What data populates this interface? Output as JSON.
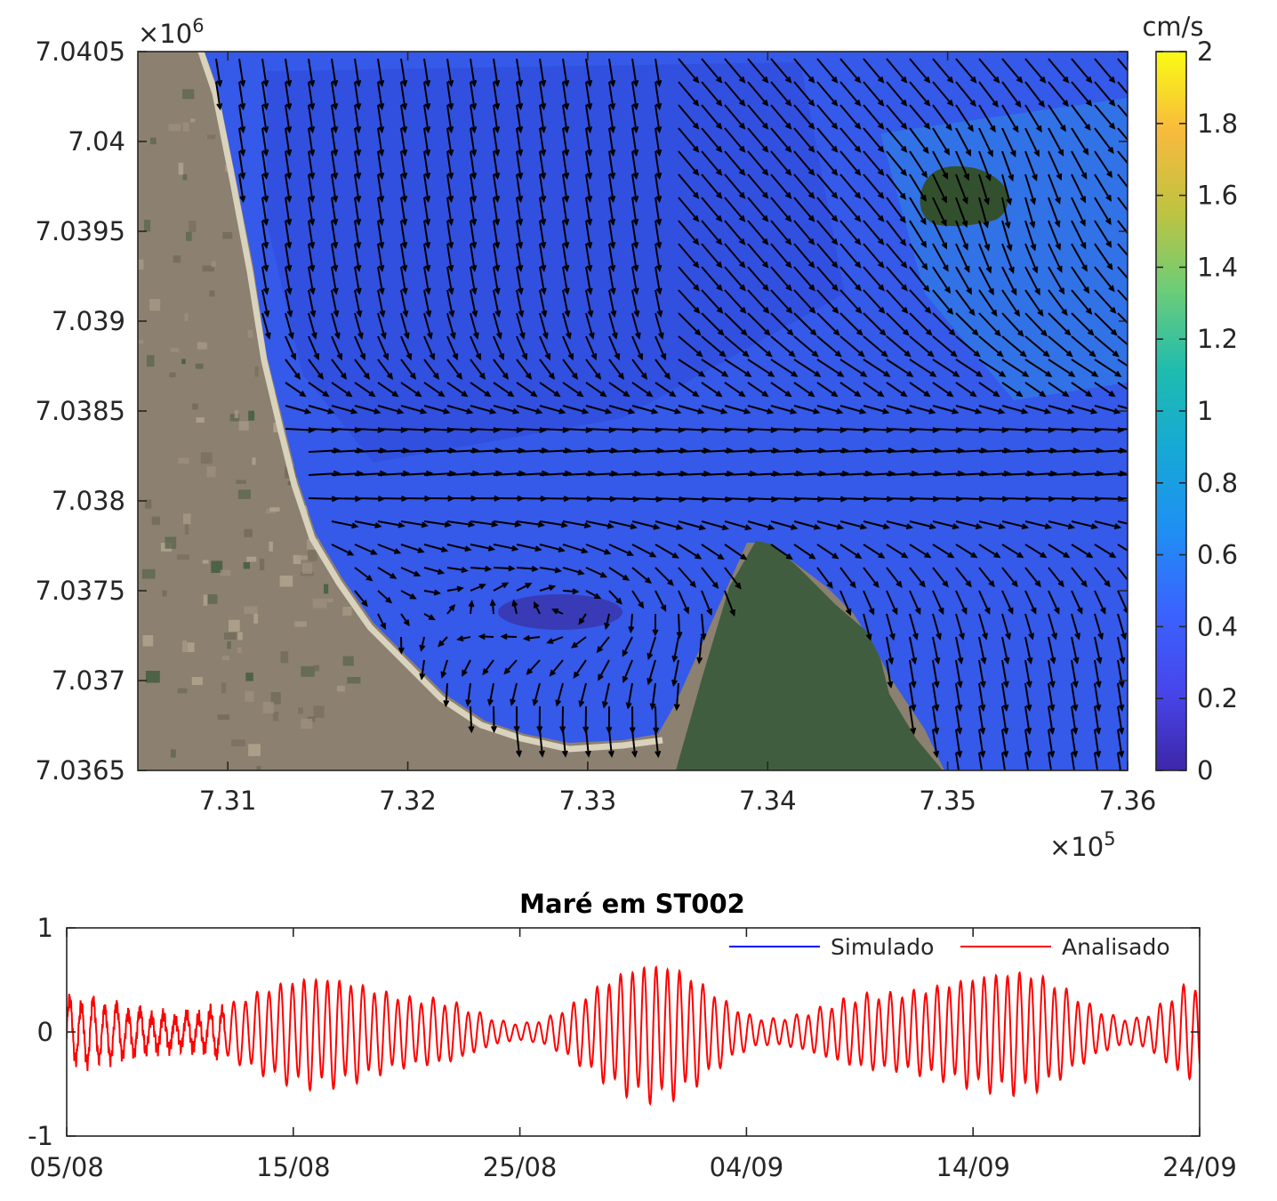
{
  "colormap": [
    "#3e26a8",
    "#4746eb",
    "#3a63ff",
    "#1f8ff3",
    "#16a8d6",
    "#1ebcb0",
    "#6ccc78",
    "#bfc340",
    "#f8ba3d",
    "#f9fb15"
  ],
  "colors": {
    "simulado": "#0000ff",
    "analisado": "#ff0000",
    "arrow": "#000000"
  },
  "chart_data": [
    {
      "type": "quiver",
      "title": "",
      "xlabel": "",
      "ylabel": "",
      "xlim": [
        730500,
        736000
      ],
      "ylim": [
        7036500,
        7040500
      ],
      "xticks": [
        731000,
        732000,
        733000,
        734000,
        735000,
        736000
      ],
      "xtick_labels": [
        "7.31",
        "7.32",
        "7.33",
        "7.34",
        "7.35",
        "7.36"
      ],
      "yticks": [
        7036500,
        7037000,
        7037500,
        7038000,
        7038500,
        7039000,
        7039500,
        7040000,
        7040500
      ],
      "ytick_labels": [
        "7.0365",
        "7.037",
        "7.0375",
        "7.038",
        "7.0385",
        "7.039",
        "7.0395",
        "7.04",
        "7.0405"
      ],
      "x_exponent_base": "×10",
      "x_exponent_power": "5",
      "y_exponent_base": "×10",
      "y_exponent_power": "6",
      "background": "satellite image with current speed shaded in water",
      "colorbar": {
        "label": "cm/s",
        "range": [
          0,
          2
        ],
        "ticks": [
          0,
          0.2,
          0.4,
          0.6,
          0.8,
          1,
          1.2,
          1.4,
          1.6,
          1.8,
          2
        ],
        "tick_labels": [
          "0",
          "0.2",
          "0.4",
          "0.6",
          "0.8",
          "1",
          "1.2",
          "1.4",
          "1.6",
          "1.8",
          "2"
        ]
      },
      "flow_features": [
        {
          "kind": "southward inflow",
          "region": "northwest bay"
        },
        {
          "kind": "eastward jet",
          "y_center": 7038200
        },
        {
          "kind": "clockwise eddy",
          "center": [
            732900,
            7037400
          ]
        },
        {
          "kind": "island",
          "center": [
            735300,
            7039700
          ]
        }
      ]
    },
    {
      "type": "line",
      "title": "Maré em ST002",
      "xlabel": "",
      "ylabel": "",
      "x_tick_labels": [
        "05/08",
        "15/08",
        "25/08",
        "04/09",
        "14/09",
        "24/09"
      ],
      "x_range_dates": [
        "05/08",
        "24/09"
      ],
      "ylim": [
        -1,
        1
      ],
      "yticks": [
        -1,
        0,
        1
      ],
      "ytick_labels": [
        "-1",
        "0",
        "1"
      ],
      "legend": "top-right",
      "series": [
        {
          "name": "Simulado",
          "color": "#0000ff",
          "values": []
        },
        {
          "name": "Analisado",
          "color": "#ff0000",
          "envelope_dates": [
            "05/08",
            "10/08",
            "16/08",
            "21/08",
            "25/08",
            "31/08",
            "05/09",
            "10/09",
            "16/09",
            "21/09",
            "24/09"
          ],
          "envelope_amplitude": [
            0.3,
            0.15,
            0.5,
            0.3,
            0.08,
            0.62,
            0.12,
            0.35,
            0.55,
            0.12,
            0.45
          ]
        }
      ]
    }
  ]
}
